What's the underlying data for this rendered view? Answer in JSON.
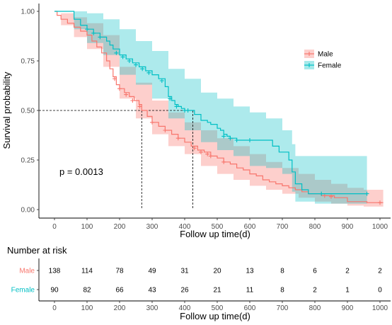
{
  "chart_data": [
    {
      "type": "line",
      "subtype": "kaplan-meier",
      "ylabel": "Survival probability",
      "xlabel": "Follow up time(d)",
      "xlim": [
        -50,
        1020
      ],
      "ylim": [
        0,
        1
      ],
      "x_ticks": [
        "0",
        "100",
        "200",
        "300",
        "400",
        "500",
        "600",
        "700",
        "800",
        "900",
        "1000"
      ],
      "y_ticks": [
        "0.00",
        "0.25",
        "0.50",
        "0.75",
        "1.00"
      ],
      "annotation": "p = 0.0013",
      "median_line": {
        "y": 0.5,
        "male_x": 268,
        "female_x": 425
      },
      "legend": {
        "position": "right",
        "entries": [
          "Male",
          "Female"
        ]
      },
      "series": [
        {
          "name": "Male",
          "color": "#F8766D",
          "band_color": "#F8766D",
          "steps": [
            [
              0,
              1.0
            ],
            [
              8,
              0.98
            ],
            [
              20,
              0.96
            ],
            [
              40,
              0.94
            ],
            [
              60,
              0.92
            ],
            [
              80,
              0.9
            ],
            [
              100,
              0.88
            ],
            [
              115,
              0.85
            ],
            [
              130,
              0.82
            ],
            [
              145,
              0.79
            ],
            [
              160,
              0.75
            ],
            [
              170,
              0.71
            ],
            [
              180,
              0.67
            ],
            [
              190,
              0.63
            ],
            [
              200,
              0.61
            ],
            [
              215,
              0.59
            ],
            [
              230,
              0.57
            ],
            [
              245,
              0.55
            ],
            [
              260,
              0.53
            ],
            [
              268,
              0.5
            ],
            [
              285,
              0.47
            ],
            [
              300,
              0.44
            ],
            [
              320,
              0.42
            ],
            [
              340,
              0.4
            ],
            [
              360,
              0.38
            ],
            [
              380,
              0.36
            ],
            [
              400,
              0.34
            ],
            [
              420,
              0.32
            ],
            [
              440,
              0.3
            ],
            [
              460,
              0.29
            ],
            [
              480,
              0.27
            ],
            [
              500,
              0.26
            ],
            [
              520,
              0.24
            ],
            [
              540,
              0.23
            ],
            [
              560,
              0.21
            ],
            [
              580,
              0.2
            ],
            [
              600,
              0.18
            ],
            [
              620,
              0.17
            ],
            [
              640,
              0.15
            ],
            [
              660,
              0.14
            ],
            [
              680,
              0.13
            ],
            [
              700,
              0.12
            ],
            [
              720,
              0.11
            ],
            [
              740,
              0.1
            ],
            [
              760,
              0.09
            ],
            [
              780,
              0.08
            ],
            [
              820,
              0.07
            ],
            [
              860,
              0.06
            ],
            [
              900,
              0.04
            ],
            [
              960,
              0.035
            ],
            [
              1000,
              0.035
            ],
            [
              1010,
              0.035
            ]
          ],
          "upper": [
            [
              0,
              1.0
            ],
            [
              20,
              0.99
            ],
            [
              60,
              0.97
            ],
            [
              100,
              0.94
            ],
            [
              150,
              0.88
            ],
            [
              200,
              0.72
            ],
            [
              250,
              0.64
            ],
            [
              300,
              0.55
            ],
            [
              350,
              0.49
            ],
            [
              400,
              0.44
            ],
            [
              450,
              0.4
            ],
            [
              500,
              0.36
            ],
            [
              550,
              0.32
            ],
            [
              600,
              0.28
            ],
            [
              650,
              0.24
            ],
            [
              700,
              0.21
            ],
            [
              750,
              0.18
            ],
            [
              800,
              0.15
            ],
            [
              850,
              0.13
            ],
            [
              900,
              0.11
            ],
            [
              950,
              0.1
            ],
            [
              1000,
              0.1
            ],
            [
              1010,
              0.1
            ]
          ],
          "lower": [
            [
              0,
              1.0
            ],
            [
              20,
              0.93
            ],
            [
              60,
              0.87
            ],
            [
              100,
              0.81
            ],
            [
              150,
              0.72
            ],
            [
              200,
              0.56
            ],
            [
              250,
              0.46
            ],
            [
              300,
              0.38
            ],
            [
              350,
              0.32
            ],
            [
              400,
              0.28
            ],
            [
              450,
              0.22
            ],
            [
              500,
              0.18
            ],
            [
              550,
              0.15
            ],
            [
              600,
              0.12
            ],
            [
              650,
              0.1
            ],
            [
              700,
              0.08
            ],
            [
              750,
              0.06
            ],
            [
              800,
              0.04
            ],
            [
              850,
              0.03
            ],
            [
              900,
              0.02
            ],
            [
              950,
              0.015
            ],
            [
              1000,
              0.015
            ],
            [
              1010,
              0.015
            ]
          ],
          "censor": [
            [
              185,
              0.66
            ],
            [
              200,
              0.61
            ],
            [
              220,
              0.58
            ],
            [
              240,
              0.55
            ],
            [
              262,
              0.52
            ],
            [
              300,
              0.44
            ],
            [
              340,
              0.4
            ],
            [
              380,
              0.36
            ],
            [
              430,
              0.31
            ],
            [
              450,
              0.29
            ],
            [
              470,
              0.28
            ],
            [
              480,
              0.27
            ],
            [
              520,
              0.24
            ],
            [
              830,
              0.07
            ],
            [
              850,
              0.065
            ],
            [
              1000,
              0.035
            ]
          ]
        },
        {
          "name": "Female",
          "color": "#00BFC4",
          "band_color": "#00BFC4",
          "steps": [
            [
              0,
              1.0
            ],
            [
              60,
              0.96
            ],
            [
              80,
              0.93
            ],
            [
              100,
              0.91
            ],
            [
              120,
              0.89
            ],
            [
              140,
              0.87
            ],
            [
              160,
              0.85
            ],
            [
              170,
              0.83
            ],
            [
              180,
              0.81
            ],
            [
              200,
              0.78
            ],
            [
              220,
              0.76
            ],
            [
              240,
              0.74
            ],
            [
              260,
              0.72
            ],
            [
              280,
              0.7
            ],
            [
              300,
              0.68
            ],
            [
              320,
              0.66
            ],
            [
              340,
              0.62
            ],
            [
              350,
              0.57
            ],
            [
              360,
              0.55
            ],
            [
              370,
              0.53
            ],
            [
              380,
              0.52
            ],
            [
              390,
              0.51
            ],
            [
              400,
              0.5
            ],
            [
              430,
              0.48
            ],
            [
              450,
              0.45
            ],
            [
              470,
              0.44
            ],
            [
              480,
              0.43
            ],
            [
              500,
              0.41
            ],
            [
              510,
              0.4
            ],
            [
              520,
              0.38
            ],
            [
              530,
              0.37
            ],
            [
              540,
              0.36
            ],
            [
              560,
              0.35
            ],
            [
              580,
              0.35
            ],
            [
              600,
              0.35
            ],
            [
              650,
              0.35
            ],
            [
              670,
              0.32
            ],
            [
              690,
              0.29
            ],
            [
              720,
              0.25
            ],
            [
              730,
              0.19
            ],
            [
              740,
              0.13
            ],
            [
              760,
              0.1
            ],
            [
              780,
              0.08
            ],
            [
              800,
              0.08
            ],
            [
              850,
              0.08
            ],
            [
              900,
              0.08
            ],
            [
              960,
              0.08
            ]
          ],
          "upper": [
            [
              0,
              1.0
            ],
            [
              60,
              1.0
            ],
            [
              100,
              0.99
            ],
            [
              150,
              0.96
            ],
            [
              200,
              0.91
            ],
            [
              250,
              0.85
            ],
            [
              300,
              0.8
            ],
            [
              350,
              0.71
            ],
            [
              400,
              0.66
            ],
            [
              450,
              0.59
            ],
            [
              500,
              0.56
            ],
            [
              550,
              0.52
            ],
            [
              600,
              0.49
            ],
            [
              650,
              0.46
            ],
            [
              700,
              0.4
            ],
            [
              730,
              0.33
            ],
            [
              740,
              0.27
            ],
            [
              800,
              0.27
            ],
            [
              850,
              0.27
            ],
            [
              900,
              0.27
            ],
            [
              960,
              0.27
            ]
          ],
          "lower": [
            [
              0,
              1.0
            ],
            [
              60,
              0.91
            ],
            [
              100,
              0.84
            ],
            [
              150,
              0.78
            ],
            [
              200,
              0.68
            ],
            [
              250,
              0.63
            ],
            [
              300,
              0.56
            ],
            [
              350,
              0.46
            ],
            [
              400,
              0.4
            ],
            [
              450,
              0.34
            ],
            [
              500,
              0.3
            ],
            [
              550,
              0.27
            ],
            [
              600,
              0.22
            ],
            [
              650,
              0.21
            ],
            [
              700,
              0.18
            ],
            [
              730,
              0.09
            ],
            [
              740,
              0.04
            ],
            [
              800,
              0.03
            ],
            [
              850,
              0.03
            ],
            [
              900,
              0.03
            ],
            [
              960,
              0.03
            ]
          ],
          "censor": [
            [
              100,
              0.91
            ],
            [
              120,
              0.89
            ],
            [
              140,
              0.87
            ],
            [
              190,
              0.79
            ],
            [
              210,
              0.77
            ],
            [
              230,
              0.75
            ],
            [
              250,
              0.73
            ],
            [
              270,
              0.71
            ],
            [
              290,
              0.69
            ],
            [
              330,
              0.65
            ],
            [
              355,
              0.56
            ],
            [
              375,
              0.52
            ],
            [
              400,
              0.5
            ],
            [
              410,
              0.5
            ],
            [
              520,
              0.37
            ],
            [
              540,
              0.36
            ],
            [
              560,
              0.35
            ],
            [
              600,
              0.35
            ],
            [
              820,
              0.08
            ],
            [
              960,
              0.08
            ]
          ]
        }
      ]
    },
    {
      "type": "table",
      "title": "Number at risk",
      "xlabel": "Follow up time(d)",
      "x_ticks": [
        "0",
        "100",
        "200",
        "300",
        "400",
        "500",
        "600",
        "700",
        "800",
        "900",
        "1000"
      ],
      "rows": [
        {
          "name": "Male",
          "color": "#F8766D",
          "values": [
            "138",
            "114",
            "78",
            "49",
            "31",
            "20",
            "13",
            "8",
            "6",
            "2",
            "2"
          ]
        },
        {
          "name": "Female",
          "color": "#00BFC4",
          "values": [
            "90",
            "82",
            "66",
            "43",
            "26",
            "21",
            "11",
            "8",
            "2",
            "1",
            "0"
          ]
        }
      ]
    }
  ]
}
